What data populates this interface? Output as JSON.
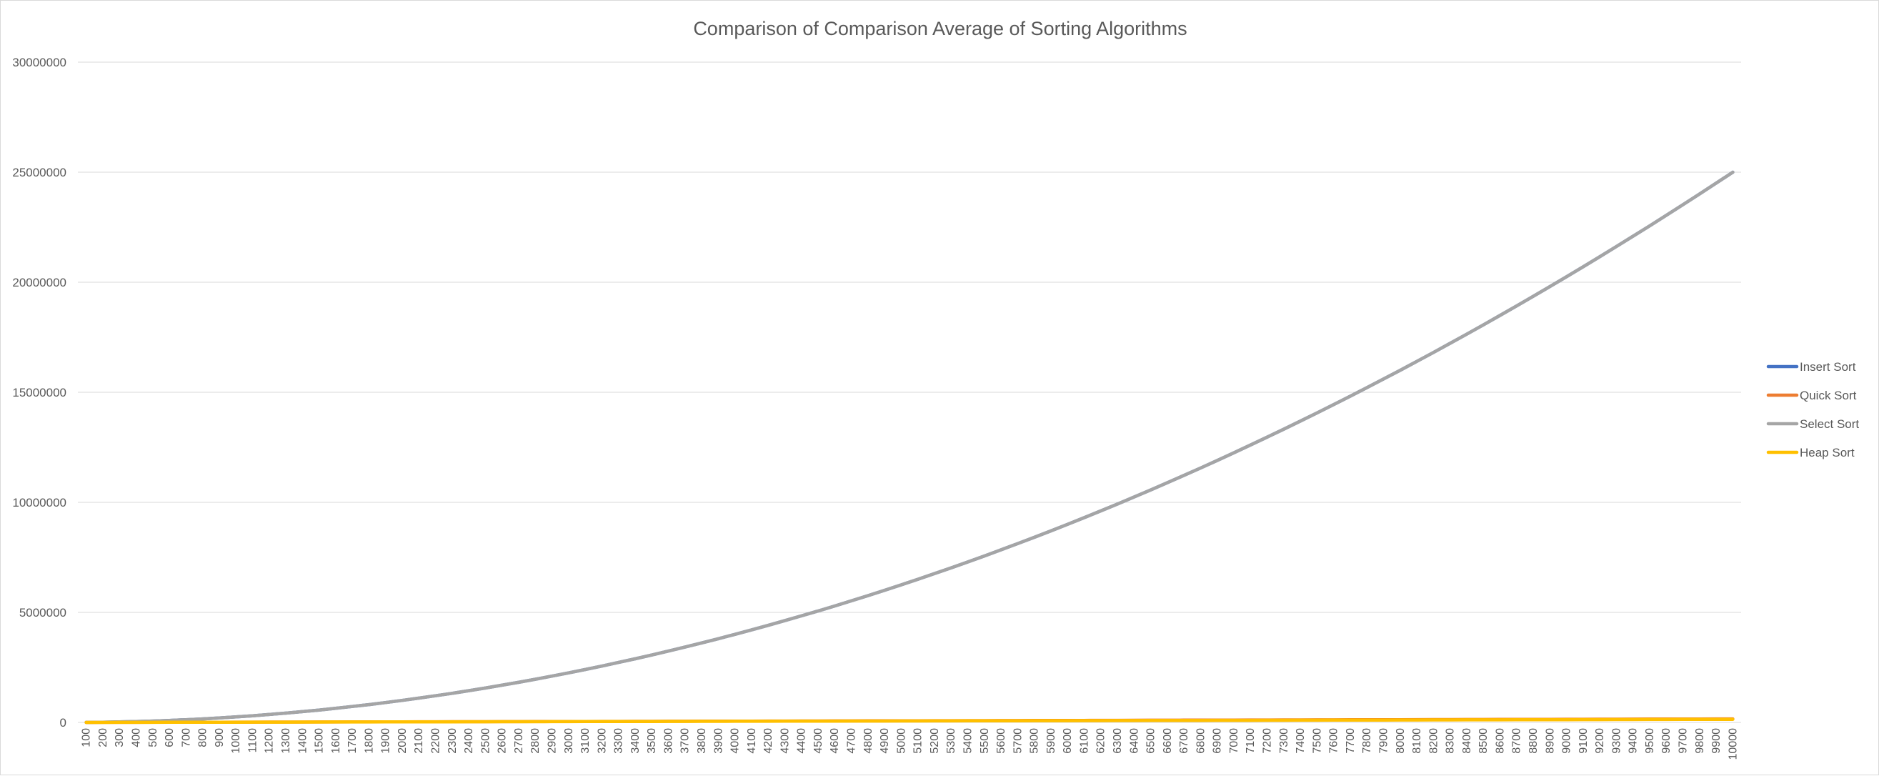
{
  "chart_data": {
    "type": "line",
    "title": "Comparison of Comparison Average of Sorting Algorithms",
    "xlabel": "",
    "ylabel": "",
    "ylim": [
      0,
      30000000
    ],
    "yticks": [
      "0",
      "5000000",
      "10000000",
      "15000000",
      "20000000",
      "25000000",
      "30000000"
    ],
    "x": [
      100,
      200,
      300,
      400,
      500,
      600,
      700,
      800,
      900,
      1000,
      1100,
      1200,
      1300,
      1400,
      1500,
      1600,
      1700,
      1800,
      1900,
      2000,
      2100,
      2200,
      2300,
      2400,
      2500,
      2600,
      2700,
      2800,
      2900,
      3000,
      3100,
      3200,
      3300,
      3400,
      3500,
      3600,
      3700,
      3800,
      3900,
      4000,
      4100,
      4200,
      4300,
      4400,
      4500,
      4600,
      4700,
      4800,
      4900,
      5000,
      5100,
      5200,
      5300,
      5400,
      5500,
      5600,
      5700,
      5800,
      5900,
      6000,
      6100,
      6200,
      6300,
      6400,
      6500,
      6600,
      6700,
      6800,
      6900,
      7000,
      7100,
      7200,
      7300,
      7400,
      7500,
      7600,
      7700,
      7800,
      7900,
      8000,
      8100,
      8200,
      8300,
      8400,
      8500,
      8600,
      8700,
      8800,
      8900,
      9000,
      9100,
      9200,
      9300,
      9400,
      9500,
      9600,
      9700,
      9800,
      9900,
      10000
    ],
    "grid": true,
    "legend_position": "right",
    "series": [
      {
        "name": "Insert Sort",
        "color": "#4472C4",
        "formula": "quadratic_half",
        "endpoint": 25000000
      },
      {
        "name": "Quick Sort",
        "color": "#ED7D31",
        "formula": "nlogn",
        "endpoint": 160000
      },
      {
        "name": "Select Sort",
        "color": "#A5A5A5",
        "formula": "quadratic_half",
        "endpoint": 25000000
      },
      {
        "name": "Heap Sort",
        "color": "#FFC000",
        "formula": "nlogn",
        "endpoint": 140000
      }
    ]
  }
}
